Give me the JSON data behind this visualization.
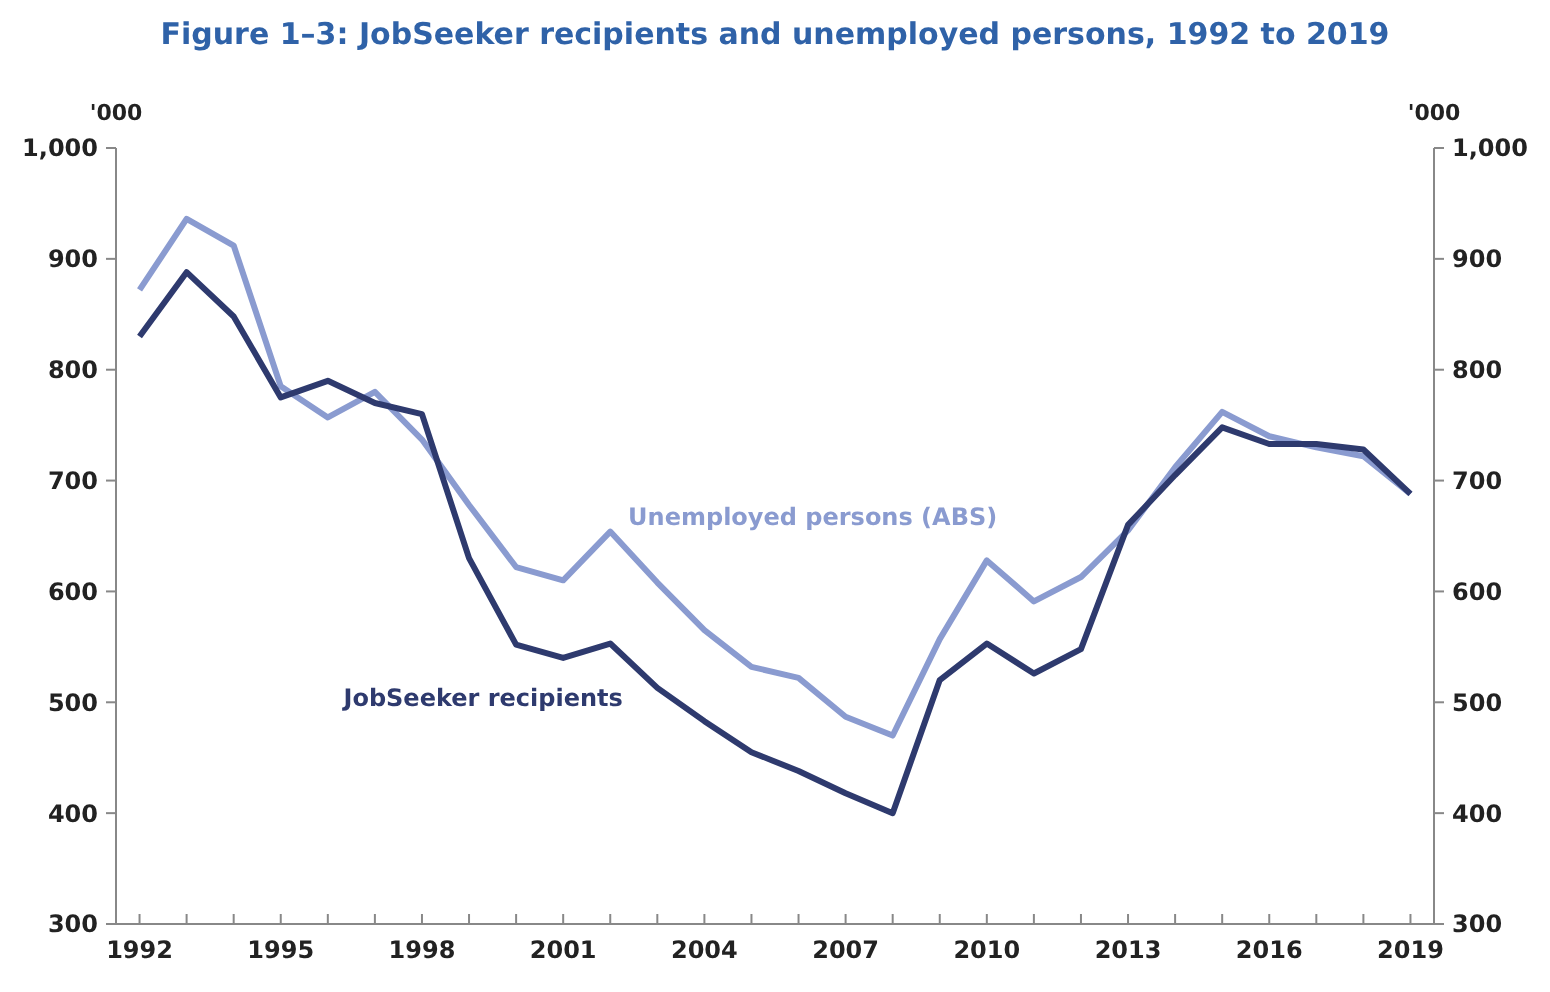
{
  "chart_data": {
    "type": "line",
    "title": "Figure 1–3: JobSeeker recipients and unemployed persons, 1992 to 2019",
    "ylabel": "'000",
    "y2label": "'000",
    "x": [
      1992,
      1993,
      1994,
      1995,
      1996,
      1997,
      1998,
      1999,
      2000,
      2001,
      2002,
      2003,
      2004,
      2005,
      2006,
      2007,
      2008,
      2009,
      2010,
      2011,
      2012,
      2013,
      2014,
      2015,
      2016,
      2017,
      2018,
      2019
    ],
    "series": [
      {
        "name": "Unemployed persons (ABS)",
        "color": "#8a9bd0",
        "values": [
          872,
          936,
          912,
          785,
          757,
          780,
          737,
          678,
          622,
          610,
          654,
          608,
          565,
          532,
          522,
          487,
          470,
          557,
          628,
          591,
          613,
          655,
          712,
          762,
          740,
          730,
          722,
          688
        ]
      },
      {
        "name": "JobSeeker recipients",
        "color": "#2e3a6e",
        "values": [
          830,
          888,
          848,
          775,
          790,
          770,
          760,
          630,
          552,
          540,
          553,
          513,
          483,
          455,
          438,
          418,
          400,
          520,
          553,
          526,
          548,
          660,
          705,
          748,
          733,
          733,
          728,
          688
        ]
      }
    ],
    "xlim": [
      1991.5,
      2019.5
    ],
    "xticks": [
      1992,
      {
        "value": 1993,
        "label": null
      },
      {
        "value": 1994,
        "label": null
      },
      1995,
      {
        "value": 1996,
        "label": null
      },
      {
        "value": 1997,
        "label": null
      },
      1998,
      {
        "value": 1999,
        "label": null
      },
      {
        "value": 2000,
        "label": null
      },
      2001,
      {
        "value": 2002,
        "label": null
      },
      {
        "value": 2003,
        "label": null
      },
      2004,
      {
        "value": 2005,
        "label": null
      },
      {
        "value": 2006,
        "label": null
      },
      2007,
      {
        "value": 2008,
        "label": null
      },
      {
        "value": 2009,
        "label": null
      },
      2010,
      {
        "value": 2011,
        "label": null
      },
      {
        "value": 2012,
        "label": null
      },
      2013,
      {
        "value": 2014,
        "label": null
      },
      {
        "value": 2015,
        "label": null
      },
      2016,
      {
        "value": 2017,
        "label": null
      },
      {
        "value": 2018,
        "label": null
      },
      2019
    ],
    "ylim": [
      300,
      1000
    ],
    "yticks": [
      300,
      400,
      500,
      600,
      700,
      800,
      900,
      {
        "value": 1000,
        "label": "1,000"
      }
    ],
    "y2lim": [
      300,
      1000
    ],
    "y2ticks": [
      300,
      400,
      500,
      600,
      700,
      800,
      900,
      {
        "value": 1000,
        "label": "1,000"
      }
    ],
    "grid": false,
    "legend": false,
    "line_style": "solid",
    "marker": "none"
  }
}
